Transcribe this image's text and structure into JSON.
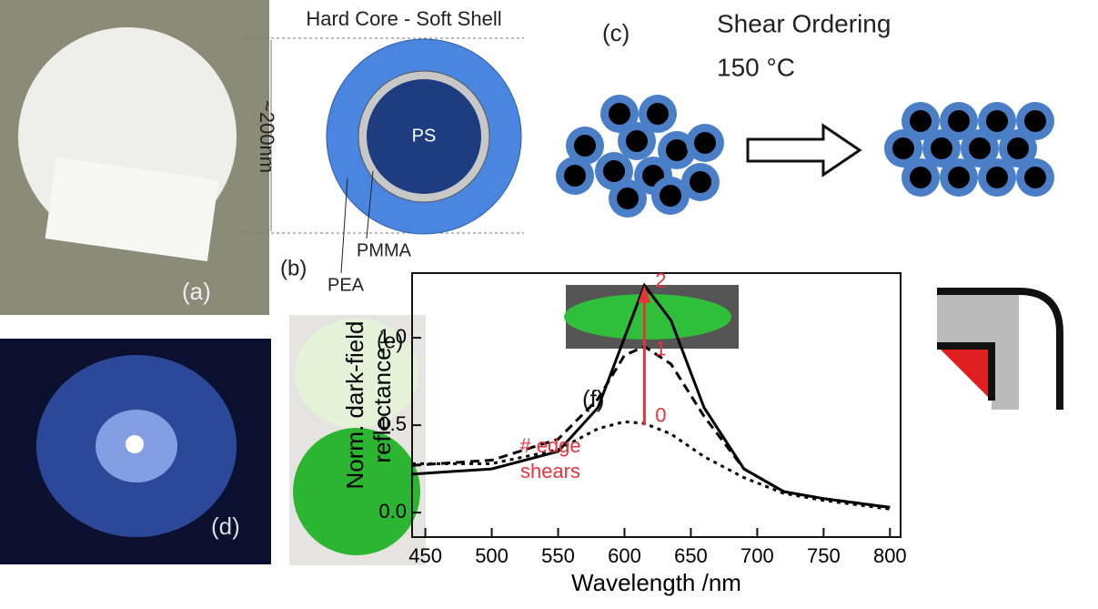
{
  "panel_labels": {
    "a": "(a)",
    "b": "(b)",
    "c": "(c)",
    "d": "(d)",
    "e": "(e)",
    "f": "(f)"
  },
  "core_shell": {
    "title": "Hard Core - Soft Shell",
    "size": "~200nm",
    "core": "PS",
    "middle": "PMMA",
    "shell": "PEA"
  },
  "shear": {
    "title": "Shear Ordering",
    "temperature": "150 °C"
  },
  "chart_data": {
    "type": "line",
    "x_label": "Wavelength /nm",
    "y_label": [
      "Norm. dark-field",
      "reflectance"
    ],
    "x": [
      440,
      500,
      550,
      580,
      600,
      615,
      635,
      660,
      690,
      720,
      750,
      800
    ],
    "series": [
      {
        "color": "#000000",
        "dash": "solid",
        "values": [
          0.22,
          0.25,
          0.35,
          0.6,
          1.0,
          1.3,
          1.1,
          0.6,
          0.25,
          0.12,
          0.08,
          0.03
        ]
      },
      {
        "color": "#000000",
        "dash": "dashed",
        "values": [
          0.27,
          0.3,
          0.42,
          0.65,
          0.9,
          0.95,
          0.85,
          0.55,
          0.25,
          0.12,
          0.08,
          0.03
        ]
      },
      {
        "color": "#000000",
        "dash": "dotted",
        "values": [
          0.28,
          0.28,
          0.36,
          0.48,
          0.52,
          0.51,
          0.45,
          0.32,
          0.2,
          0.11,
          0.07,
          0.02
        ]
      }
    ],
    "xlim": [
      440,
      808
    ],
    "ylim": [
      -0.14,
      1.37
    ],
    "xticks": [
      450,
      500,
      550,
      600,
      650,
      700,
      750,
      800
    ],
    "yticks": [
      {
        "value": 0,
        "label": "0.0"
      },
      0.5,
      {
        "value": 1,
        "label": "1.0"
      }
    ],
    "annotation_color": "#e8333a",
    "curve_labels": [
      "0",
      "1",
      "2"
    ],
    "note": [
      "# edge",
      "shears"
    ]
  }
}
